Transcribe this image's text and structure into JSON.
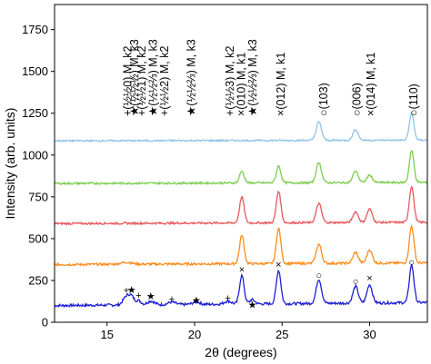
{
  "chart_data": {
    "type": "line",
    "xlabel": "2θ (degrees)",
    "ylabel": "Intensity (arb. units)",
    "xlim": [
      12,
      33.3
    ],
    "ylim": [
      0,
      1900
    ],
    "grid": false,
    "xticks": [
      15,
      20,
      25,
      30
    ],
    "yticks": [
      0,
      250,
      500,
      750,
      1000,
      1250,
      1500,
      1750
    ],
    "series": [
      {
        "color": "#1f1fd6",
        "baseline": 100,
        "slope": 9,
        "noise": 8,
        "peaks": [
          {
            "x": 16.1,
            "h": 50,
            "w": 0.18
          },
          {
            "x": 16.4,
            "h": 45,
            "w": 0.15
          },
          {
            "x": 16.8,
            "h": 25,
            "w": 0.15
          },
          {
            "x": 17.5,
            "h": 22,
            "w": 0.2
          },
          {
            "x": 18.7,
            "h": 15,
            "w": 0.2
          },
          {
            "x": 20.1,
            "h": 15,
            "w": 0.2
          },
          {
            "x": 21.9,
            "h": 18,
            "w": 0.2
          },
          {
            "x": 22.7,
            "h": 170,
            "w": 0.13
          },
          {
            "x": 23.3,
            "h": 25,
            "w": 0.15
          },
          {
            "x": 24.8,
            "h": 200,
            "w": 0.13
          },
          {
            "x": 27.1,
            "h": 145,
            "w": 0.15
          },
          {
            "x": 29.2,
            "h": 100,
            "w": 0.15
          },
          {
            "x": 30.0,
            "h": 110,
            "w": 0.15
          },
          {
            "x": 32.4,
            "h": 225,
            "w": 0.13
          }
        ]
      },
      {
        "color": "#ff8c1a",
        "baseline": 345,
        "slope": 5,
        "noise": 7,
        "peaks": [
          {
            "x": 16.1,
            "h": 12,
            "w": 0.3
          },
          {
            "x": 22.7,
            "h": 170,
            "w": 0.13
          },
          {
            "x": 24.8,
            "h": 210,
            "w": 0.13
          },
          {
            "x": 27.1,
            "h": 115,
            "w": 0.15
          },
          {
            "x": 29.2,
            "h": 65,
            "w": 0.15
          },
          {
            "x": 30.0,
            "h": 80,
            "w": 0.15
          },
          {
            "x": 32.4,
            "h": 220,
            "w": 0.13
          }
        ]
      },
      {
        "color": "#e8575a",
        "baseline": 590,
        "slope": 4,
        "noise": 6,
        "peaks": [
          {
            "x": 22.7,
            "h": 155,
            "w": 0.13
          },
          {
            "x": 24.8,
            "h": 190,
            "w": 0.13
          },
          {
            "x": 27.1,
            "h": 115,
            "w": 0.15
          },
          {
            "x": 29.2,
            "h": 65,
            "w": 0.15
          },
          {
            "x": 30.0,
            "h": 80,
            "w": 0.15
          },
          {
            "x": 32.4,
            "h": 215,
            "w": 0.13
          }
        ]
      },
      {
        "color": "#7ccd4f",
        "baseline": 830,
        "slope": 3,
        "noise": 6,
        "peaks": [
          {
            "x": 22.7,
            "h": 70,
            "w": 0.13
          },
          {
            "x": 24.8,
            "h": 100,
            "w": 0.13
          },
          {
            "x": 27.1,
            "h": 120,
            "w": 0.15
          },
          {
            "x": 29.2,
            "h": 70,
            "w": 0.15
          },
          {
            "x": 30.0,
            "h": 45,
            "w": 0.15
          },
          {
            "x": 32.4,
            "h": 190,
            "w": 0.13
          }
        ]
      },
      {
        "color": "#8fc4e8",
        "baseline": 1085,
        "slope": 2,
        "noise": 5,
        "peaks": [
          {
            "x": 27.1,
            "h": 110,
            "w": 0.15
          },
          {
            "x": 29.2,
            "h": 65,
            "w": 0.15
          },
          {
            "x": 32.4,
            "h": 160,
            "w": 0.13
          }
        ]
      }
    ],
    "peak_markers": [
      {
        "x": 16.1,
        "y": 170,
        "symbol": "+"
      },
      {
        "x": 16.4,
        "y": 175,
        "symbol": "★"
      },
      {
        "x": 16.8,
        "y": 140,
        "symbol": "+"
      },
      {
        "x": 17.5,
        "y": 135,
        "symbol": "★"
      },
      {
        "x": 18.7,
        "y": 120,
        "symbol": "+"
      },
      {
        "x": 20.1,
        "y": 110,
        "symbol": "★"
      },
      {
        "x": 21.9,
        "y": 125,
        "symbol": "+"
      },
      {
        "x": 22.7,
        "y": 295,
        "symbol": "×"
      },
      {
        "x": 23.3,
        "y": 85,
        "symbol": "★"
      },
      {
        "x": 24.8,
        "y": 325,
        "symbol": "×"
      },
      {
        "x": 27.1,
        "y": 260,
        "symbol": "○"
      },
      {
        "x": 29.2,
        "y": 225,
        "symbol": "○"
      },
      {
        "x": 30.0,
        "y": 245,
        "symbol": "×"
      },
      {
        "x": 32.4,
        "y": 340,
        "symbol": "○"
      }
    ],
    "annotations": [
      {
        "x": 16.15,
        "text": "+(½½0) M, k2"
      },
      {
        "x": 16.55,
        "text": "★(½½½) M, k3"
      },
      {
        "x": 16.95,
        "text": "+(½½1) M, k2"
      },
      {
        "x": 17.6,
        "text": "★(½½⅔) M, k3"
      },
      {
        "x": 18.25,
        "text": "+(½½2) M, k2"
      },
      {
        "x": 19.8,
        "text": "★(½½⅔) M, k3"
      },
      {
        "x": 22.0,
        "text": "+(½½3) M, k2"
      },
      {
        "x": 22.65,
        "text": "×(010) M, k1"
      },
      {
        "x": 23.3,
        "text": "★(½½⅔) M, k3"
      },
      {
        "x": 24.9,
        "text": "×(012) M, k1"
      },
      {
        "x": 27.35,
        "text": "○(103)"
      },
      {
        "x": 29.25,
        "text": "○(006)"
      },
      {
        "x": 30.05,
        "text": "×(014) M, k1"
      },
      {
        "x": 32.5,
        "text": "○(110)"
      }
    ]
  }
}
